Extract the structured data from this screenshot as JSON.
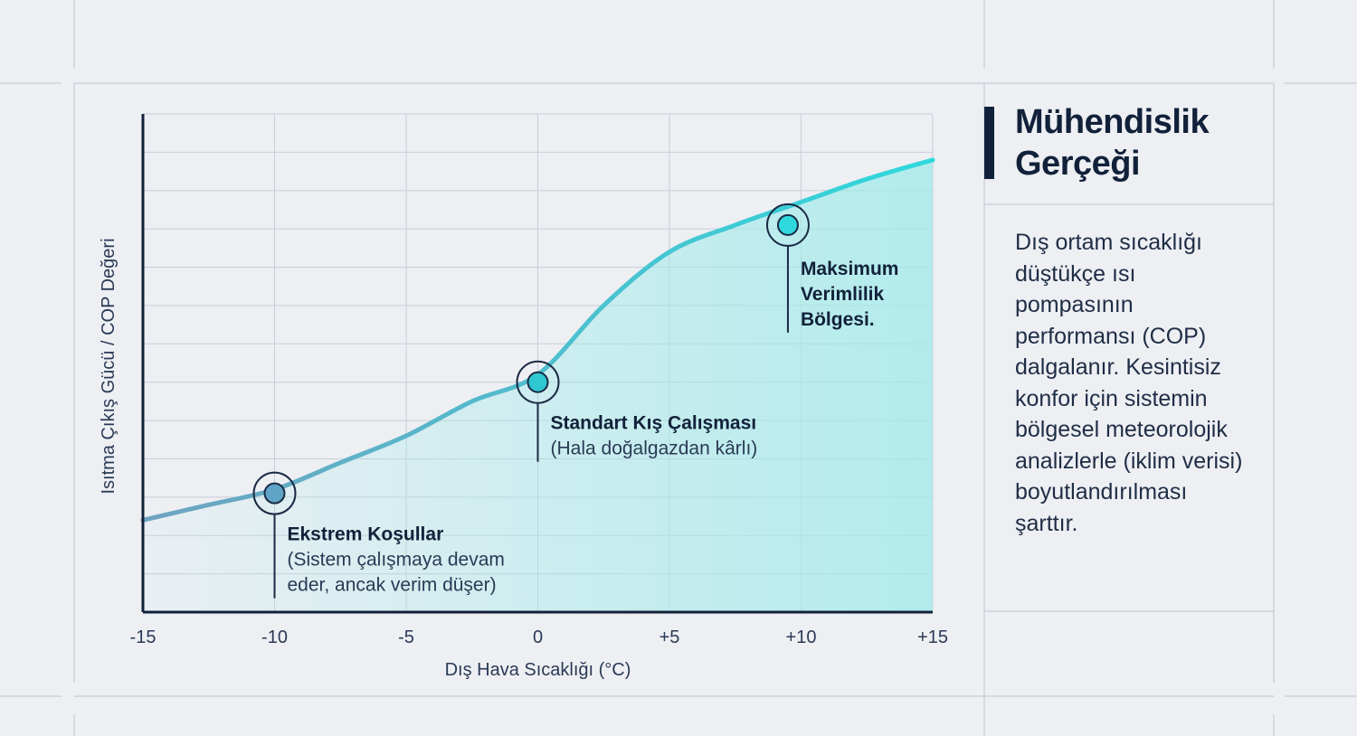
{
  "chart_data": {
    "type": "area",
    "xlabel": "Dış Hava Sıcaklığı (°C)",
    "ylabel": "Isıtma Çıkış Gücü / COP Değeri",
    "xlim": [
      -15,
      15
    ],
    "ylim": [
      0,
      13
    ],
    "x_ticks": [
      "-15",
      "-10",
      "-5",
      "0",
      "+5",
      "+10",
      "+15"
    ],
    "grid": true,
    "series": [
      {
        "x": [
          -15,
          -12.5,
          -10,
          -7.5,
          -5,
          -2.5,
          0,
          2.5,
          5,
          7.5,
          10,
          12.5,
          15
        ],
        "y": [
          2.4,
          2.8,
          3.2,
          3.9,
          4.6,
          5.5,
          6.2,
          8.0,
          9.4,
          10.1,
          10.7,
          11.3,
          11.8
        ]
      }
    ],
    "colors": {
      "line_start": "#6fa3c0",
      "line_end": "#2fd8dc",
      "fill": "#9eeaea",
      "axis": "#12213a",
      "grid": "#c9ced8"
    },
    "annotations": [
      {
        "x": -10,
        "y": 3.1,
        "title": "Ekstrem Koşullar",
        "lines": [
          "(Sistem çalışmaya devam",
          "eder, ancak verim düşer)"
        ],
        "marker_color": "#5fa3c6"
      },
      {
        "x": 0,
        "y": 6.0,
        "title": "Standart Kış Çalışması",
        "lines": [
          "(Hala doğalgazdan kârlı)"
        ],
        "marker_color": "#2fc8d0"
      },
      {
        "x": 9.5,
        "y": 10.1,
        "title": "Maksimum",
        "lines": [
          "Verimlilik",
          "Bölgesi."
        ],
        "marker_color": "#2fd8dc"
      }
    ]
  },
  "side_panel": {
    "title_lines": [
      "Mühendislik",
      "Gerçeği"
    ],
    "body_lines": [
      "Dış ortam sıcaklığı",
      "düştükçe ısı",
      "pompasının",
      "performansı (COP)",
      "dalgalanır. Kesintisiz",
      "konfor için sistemin",
      "bölgesel meteorolojik",
      "analizlerle (iklim verisi)",
      "boyutlandırılması",
      "şarttır."
    ]
  }
}
